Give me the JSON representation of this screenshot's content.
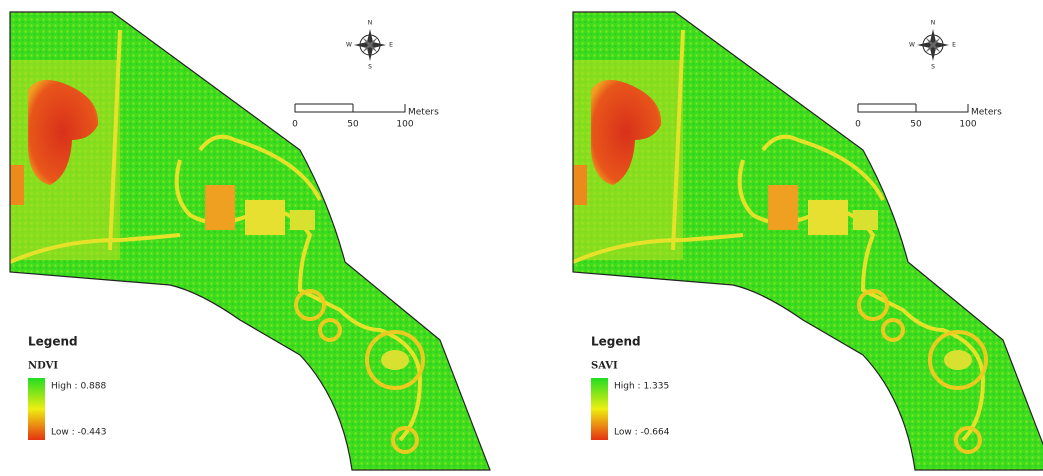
{
  "panels": [
    {
      "legend": {
        "title": "Legend",
        "index": "NDVI",
        "high": "High : 0.888",
        "low": "Low : -0.443"
      },
      "scale_bar": {
        "labels": [
          "0",
          "50",
          "100"
        ],
        "unit": "Meters"
      },
      "compass": {
        "n": "N",
        "s": "S",
        "e": "E",
        "w": "W"
      }
    },
    {
      "legend": {
        "title": "Legend",
        "index": "SAVI",
        "high": "High : 1.335",
        "low": "Low : -0.664"
      },
      "scale_bar": {
        "labels": [
          "0",
          "50",
          "100"
        ],
        "unit": "Meters"
      },
      "compass": {
        "n": "N",
        "s": "S",
        "e": "E",
        "w": "W"
      }
    }
  ]
}
